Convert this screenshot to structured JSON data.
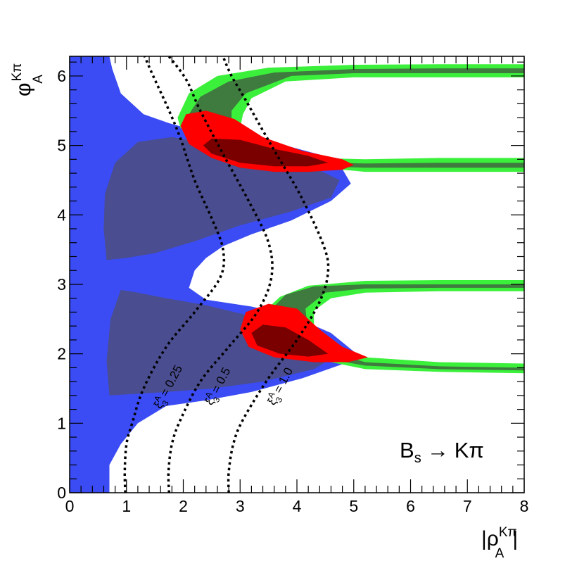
{
  "chart_data": {
    "type": "contour",
    "xlim": [
      0,
      8
    ],
    "ylim": [
      0,
      6.283
    ],
    "x_ticks": [
      "0",
      "1",
      "2",
      "3",
      "4",
      "5",
      "6",
      "7",
      "8"
    ],
    "y_ticks": [
      "0",
      "1",
      "2",
      "3",
      "4",
      "5",
      "6"
    ],
    "xlabel": {
      "base": "|ρ",
      "sup": "Kπ",
      "sub": "A",
      "close": "|"
    },
    "ylabel": {
      "base": "φ",
      "sup": "Kπ",
      "sub": "A"
    },
    "process_label": "B_s → Kπ",
    "process": {
      "B": "B",
      "s": "s",
      "arrow": "→",
      "final": "Kπ"
    },
    "colors": {
      "blue_outer": "#3b4cf4",
      "blue_inner": "#4a4d8f",
      "green_outer": "#3bf03b",
      "green_inner": "#3f7a3f",
      "red_outer": "#ff0000",
      "red_inner": "#7a0000"
    },
    "regions": [
      {
        "name": "blue-outer",
        "color": "#3b4cf4",
        "points": [
          [
            0,
            0
          ],
          [
            0.7,
            0
          ],
          [
            0.7,
            0.4
          ],
          [
            0.9,
            0.7
          ],
          [
            1.2,
            1.0
          ],
          [
            1.7,
            1.25
          ],
          [
            2.4,
            1.33
          ],
          [
            3.2,
            1.45
          ],
          [
            4.1,
            1.65
          ],
          [
            4.8,
            1.85
          ],
          [
            5.05,
            2.0
          ],
          [
            4.6,
            2.3
          ],
          [
            3.9,
            2.55
          ],
          [
            3.2,
            2.68
          ],
          [
            2.4,
            2.78
          ],
          [
            2.1,
            2.95
          ],
          [
            2.2,
            3.2
          ],
          [
            2.4,
            3.38
          ],
          [
            2.7,
            3.55
          ],
          [
            3.2,
            3.72
          ],
          [
            3.9,
            3.92
          ],
          [
            4.6,
            4.2
          ],
          [
            4.95,
            4.45
          ],
          [
            4.7,
            4.8
          ],
          [
            3.8,
            5.0
          ],
          [
            3.0,
            5.12
          ],
          [
            2.2,
            5.22
          ],
          [
            1.75,
            5.32
          ],
          [
            1.3,
            5.45
          ],
          [
            0.9,
            5.75
          ],
          [
            0.75,
            6.1
          ],
          [
            0.7,
            6.28
          ],
          [
            0,
            6.28
          ]
        ]
      },
      {
        "name": "blue-inner-upper",
        "color": "#4a4d8f",
        "points": [
          [
            0.65,
            3.35
          ],
          [
            0.6,
            3.8
          ],
          [
            0.62,
            4.3
          ],
          [
            0.8,
            4.75
          ],
          [
            1.2,
            5.05
          ],
          [
            1.8,
            5.12
          ],
          [
            2.6,
            5.0
          ],
          [
            3.4,
            4.88
          ],
          [
            4.2,
            4.72
          ],
          [
            4.75,
            4.5
          ],
          [
            4.6,
            4.25
          ],
          [
            3.9,
            4.05
          ],
          [
            3.0,
            3.85
          ],
          [
            2.2,
            3.62
          ],
          [
            1.5,
            3.45
          ],
          [
            1.0,
            3.38
          ]
        ]
      },
      {
        "name": "blue-inner-lower",
        "color": "#4a4d8f",
        "points": [
          [
            0.7,
            1.4
          ],
          [
            0.65,
            1.9
          ],
          [
            0.72,
            2.5
          ],
          [
            0.9,
            2.92
          ],
          [
            1.2,
            2.88
          ],
          [
            1.7,
            2.8
          ],
          [
            2.4,
            2.7
          ],
          [
            3.3,
            2.52
          ],
          [
            4.2,
            2.3
          ],
          [
            4.75,
            2.0
          ],
          [
            4.3,
            1.78
          ],
          [
            3.4,
            1.6
          ],
          [
            2.5,
            1.5
          ],
          [
            1.7,
            1.45
          ],
          [
            1.1,
            1.42
          ]
        ]
      },
      {
        "name": "green-outer-upper",
        "color": "#3bf03b",
        "points": [
          [
            1.9,
            5.4
          ],
          [
            2.1,
            5.75
          ],
          [
            2.6,
            6.0
          ],
          [
            3.5,
            6.12
          ],
          [
            5.0,
            6.16
          ],
          [
            6.5,
            6.17
          ],
          [
            8,
            6.17
          ],
          [
            8,
            5.98
          ],
          [
            6.5,
            5.98
          ],
          [
            5.0,
            5.98
          ],
          [
            3.8,
            5.92
          ],
          [
            3.2,
            5.68
          ],
          [
            3.05,
            5.45
          ],
          [
            3.0,
            5.25
          ],
          [
            3.5,
            4.95
          ],
          [
            4.3,
            4.82
          ],
          [
            5.2,
            4.8
          ],
          [
            6.5,
            4.82
          ],
          [
            8,
            4.82
          ],
          [
            8,
            4.62
          ],
          [
            6.5,
            4.62
          ],
          [
            5.2,
            4.62
          ],
          [
            4.8,
            4.65
          ],
          [
            3.9,
            4.75
          ],
          [
            3.0,
            4.95
          ],
          [
            2.3,
            5.1
          ],
          [
            1.95,
            5.25
          ]
        ]
      },
      {
        "name": "green-outer-lower",
        "color": "#3bf03b",
        "points": [
          [
            3.35,
            2.55
          ],
          [
            3.7,
            2.82
          ],
          [
            4.2,
            2.98
          ],
          [
            5.2,
            3.05
          ],
          [
            6.5,
            3.06
          ],
          [
            8,
            3.06
          ],
          [
            8,
            2.9
          ],
          [
            6.5,
            2.9
          ],
          [
            5.2,
            2.88
          ],
          [
            4.6,
            2.8
          ],
          [
            4.3,
            2.62
          ],
          [
            4.3,
            2.35
          ],
          [
            4.6,
            2.1
          ],
          [
            5.2,
            1.95
          ],
          [
            6.5,
            1.88
          ],
          [
            8,
            1.86
          ],
          [
            8,
            1.72
          ],
          [
            6.5,
            1.74
          ],
          [
            5.2,
            1.78
          ],
          [
            4.6,
            1.88
          ],
          [
            4.0,
            2.0
          ],
          [
            3.6,
            2.2
          ],
          [
            3.35,
            2.4
          ]
        ]
      },
      {
        "name": "green-inner-upper",
        "color": "#3f7a3f",
        "points": [
          [
            2.1,
            5.45
          ],
          [
            2.3,
            5.7
          ],
          [
            2.8,
            5.92
          ],
          [
            3.6,
            6.05
          ],
          [
            5.0,
            6.1
          ],
          [
            6.5,
            6.11
          ],
          [
            8,
            6.11
          ],
          [
            8,
            6.04
          ],
          [
            6.5,
            6.04
          ],
          [
            5.0,
            6.04
          ],
          [
            3.9,
            6.0
          ],
          [
            3.1,
            5.75
          ],
          [
            2.85,
            5.5
          ],
          [
            2.85,
            5.3
          ],
          [
            3.5,
            4.88
          ],
          [
            4.3,
            4.76
          ],
          [
            5.2,
            4.74
          ],
          [
            6.5,
            4.75
          ],
          [
            8,
            4.75
          ],
          [
            8,
            4.68
          ],
          [
            6.5,
            4.68
          ],
          [
            5.2,
            4.68
          ],
          [
            4.3,
            4.7
          ],
          [
            3.4,
            4.85
          ],
          [
            2.6,
            5.1
          ],
          [
            2.2,
            5.3
          ]
        ]
      },
      {
        "name": "green-inner-lower",
        "color": "#3f7a3f",
        "points": [
          [
            3.5,
            2.6
          ],
          [
            3.8,
            2.85
          ],
          [
            4.3,
            2.97
          ],
          [
            5.2,
            3.0
          ],
          [
            6.5,
            3.0
          ],
          [
            8,
            3.0
          ],
          [
            8,
            2.95
          ],
          [
            6.5,
            2.95
          ],
          [
            5.2,
            2.94
          ],
          [
            4.5,
            2.88
          ],
          [
            4.15,
            2.65
          ],
          [
            4.2,
            2.3
          ],
          [
            4.6,
            2.02
          ],
          [
            5.2,
            1.88
          ],
          [
            6.5,
            1.82
          ],
          [
            8,
            1.8
          ],
          [
            8,
            1.76
          ],
          [
            6.5,
            1.78
          ],
          [
            5.2,
            1.83
          ],
          [
            4.5,
            1.93
          ],
          [
            3.9,
            2.15
          ],
          [
            3.55,
            2.4
          ]
        ]
      },
      {
        "name": "red-outer-upper",
        "color": "#ff0000",
        "points": [
          [
            1.95,
            5.28
          ],
          [
            2.05,
            5.45
          ],
          [
            2.4,
            5.5
          ],
          [
            2.9,
            5.38
          ],
          [
            3.4,
            5.12
          ],
          [
            4.1,
            4.92
          ],
          [
            4.8,
            4.8
          ],
          [
            5.0,
            4.72
          ],
          [
            4.8,
            4.65
          ],
          [
            4.2,
            4.62
          ],
          [
            3.6,
            4.62
          ],
          [
            3.0,
            4.68
          ],
          [
            2.5,
            4.82
          ],
          [
            2.1,
            5.02
          ]
        ]
      },
      {
        "name": "red-outer-lower",
        "color": "#ff0000",
        "points": [
          [
            3.0,
            2.35
          ],
          [
            3.1,
            2.6
          ],
          [
            3.5,
            2.72
          ],
          [
            4.0,
            2.65
          ],
          [
            4.4,
            2.35
          ],
          [
            4.8,
            2.1
          ],
          [
            5.25,
            1.95
          ],
          [
            4.9,
            1.88
          ],
          [
            4.3,
            1.88
          ],
          [
            3.6,
            1.95
          ],
          [
            3.15,
            2.1
          ]
        ]
      },
      {
        "name": "red-inner-upper",
        "color": "#7a0000",
        "points": [
          [
            2.35,
            5.0
          ],
          [
            2.5,
            5.1
          ],
          [
            3.0,
            5.08
          ],
          [
            3.6,
            4.95
          ],
          [
            4.2,
            4.85
          ],
          [
            4.55,
            4.75
          ],
          [
            4.2,
            4.7
          ],
          [
            3.6,
            4.7
          ],
          [
            3.0,
            4.75
          ],
          [
            2.5,
            4.88
          ]
        ]
      },
      {
        "name": "red-inner-lower",
        "color": "#7a0000",
        "points": [
          [
            3.2,
            2.3
          ],
          [
            3.4,
            2.42
          ],
          [
            3.8,
            2.38
          ],
          [
            4.2,
            2.2
          ],
          [
            4.55,
            2.0
          ],
          [
            4.2,
            1.96
          ],
          [
            3.7,
            2.0
          ],
          [
            3.3,
            2.12
          ]
        ]
      }
    ],
    "contour_lines": [
      {
        "name": "xi-0.25",
        "label": "ξ^A_3 = 0.25",
        "points": [
          [
            0.98,
            0
          ],
          [
            0.97,
            0.3
          ],
          [
            1.0,
            0.7
          ],
          [
            1.1,
            1.0
          ],
          [
            1.3,
            1.5
          ],
          [
            1.7,
            2.1
          ],
          [
            2.2,
            2.6
          ],
          [
            2.65,
            3.1
          ],
          [
            2.7,
            3.5
          ],
          [
            2.5,
            3.95
          ],
          [
            2.2,
            4.5
          ],
          [
            1.95,
            5.1
          ],
          [
            1.75,
            5.5
          ],
          [
            1.47,
            6.0
          ],
          [
            1.32,
            6.28
          ]
        ]
      },
      {
        "name": "xi-0.5",
        "label": "ξ^A_3 = 0.5",
        "points": [
          [
            1.75,
            0
          ],
          [
            1.74,
            0.3
          ],
          [
            1.8,
            0.7
          ],
          [
            1.95,
            1.05
          ],
          [
            2.3,
            1.6
          ],
          [
            2.8,
            2.1
          ],
          [
            3.3,
            2.6
          ],
          [
            3.55,
            3.1
          ],
          [
            3.5,
            3.6
          ],
          [
            3.15,
            4.2
          ],
          [
            2.75,
            4.8
          ],
          [
            2.3,
            5.5
          ],
          [
            2.05,
            5.95
          ],
          [
            1.75,
            6.28
          ]
        ]
      },
      {
        "name": "xi-1.0",
        "label": "ξ^A_3 = 1.0",
        "points": [
          [
            2.8,
            0
          ],
          [
            2.8,
            0.3
          ],
          [
            2.88,
            0.7
          ],
          [
            3.05,
            1.05
          ],
          [
            3.5,
            1.65
          ],
          [
            4.0,
            2.2
          ],
          [
            4.4,
            2.75
          ],
          [
            4.55,
            3.2
          ],
          [
            4.45,
            3.6
          ],
          [
            4.05,
            4.3
          ],
          [
            3.55,
            5.0
          ],
          [
            3.1,
            5.65
          ],
          [
            2.85,
            6.0
          ],
          [
            2.7,
            6.28
          ]
        ]
      }
    ],
    "contour_labels": [
      {
        "name": "xi-0.25-label",
        "x": 1.6,
        "y": 1.2,
        "angle": -62,
        "text": "ξ",
        "sup": "A",
        "sub": "3",
        "value": " = 0.25"
      },
      {
        "name": "xi-0.5-label",
        "x": 2.5,
        "y": 1.25,
        "angle": -62,
        "text": "ξ",
        "sup": "A",
        "sub": "3",
        "value": " = 0.5"
      },
      {
        "name": "xi-1.0-label",
        "x": 3.6,
        "y": 1.25,
        "angle": -62,
        "text": "ξ",
        "sup": "A",
        "sub": "3",
        "value": " = 1.0"
      }
    ]
  }
}
